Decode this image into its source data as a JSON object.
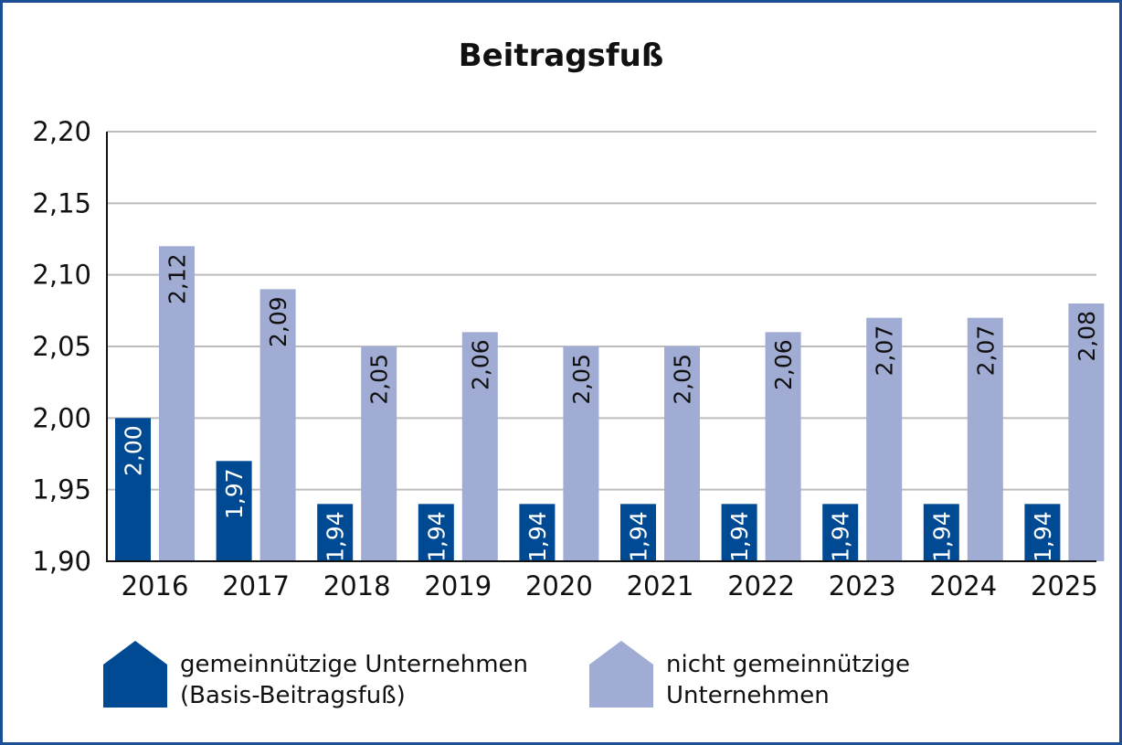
{
  "chart_data": {
    "type": "bar",
    "title": "Beitragsfuß",
    "xlabel": "",
    "ylabel": "",
    "ylim": [
      1.9,
      2.2
    ],
    "yticks": [
      "1,90",
      "1,95",
      "2,00",
      "2,05",
      "2,10",
      "2,15",
      "2,20"
    ],
    "ytick_values": [
      1.9,
      1.95,
      2.0,
      2.05,
      2.1,
      2.15,
      2.2
    ],
    "grid": true,
    "legend_placement": "bottom",
    "categories": [
      "2016",
      "2017",
      "2018",
      "2019",
      "2020",
      "2021",
      "2022",
      "2023",
      "2024",
      "2025"
    ],
    "series": [
      {
        "name": "gemeinnützige Unternehmen (Basis-Beitragsfuß)",
        "legend_lines": [
          "gemeinnützige Unternehmen",
          "(Basis-Beitragsfuß)"
        ],
        "color": "#004a93",
        "label_color": "#ffffff",
        "values": [
          2.0,
          1.97,
          1.94,
          1.94,
          1.94,
          1.94,
          1.94,
          1.94,
          1.94,
          1.94
        ],
        "labels": [
          "2,00",
          "1,97",
          "1,94",
          "1,94",
          "1,94",
          "1,94",
          "1,94",
          "1,94",
          "1,94",
          "1,94"
        ]
      },
      {
        "name": "nicht gemeinnützige Unternehmen",
        "legend_lines": [
          "nicht gemeinnützige",
          "Unternehmen"
        ],
        "color": "#a1acd4",
        "label_color": "#111111",
        "values": [
          2.12,
          2.09,
          2.05,
          2.06,
          2.05,
          2.05,
          2.06,
          2.07,
          2.07,
          2.08
        ],
        "labels": [
          "2,12",
          "2,09",
          "2,05",
          "2,06",
          "2,05",
          "2,05",
          "2,06",
          "2,07",
          "2,07",
          "2,08"
        ]
      }
    ]
  }
}
